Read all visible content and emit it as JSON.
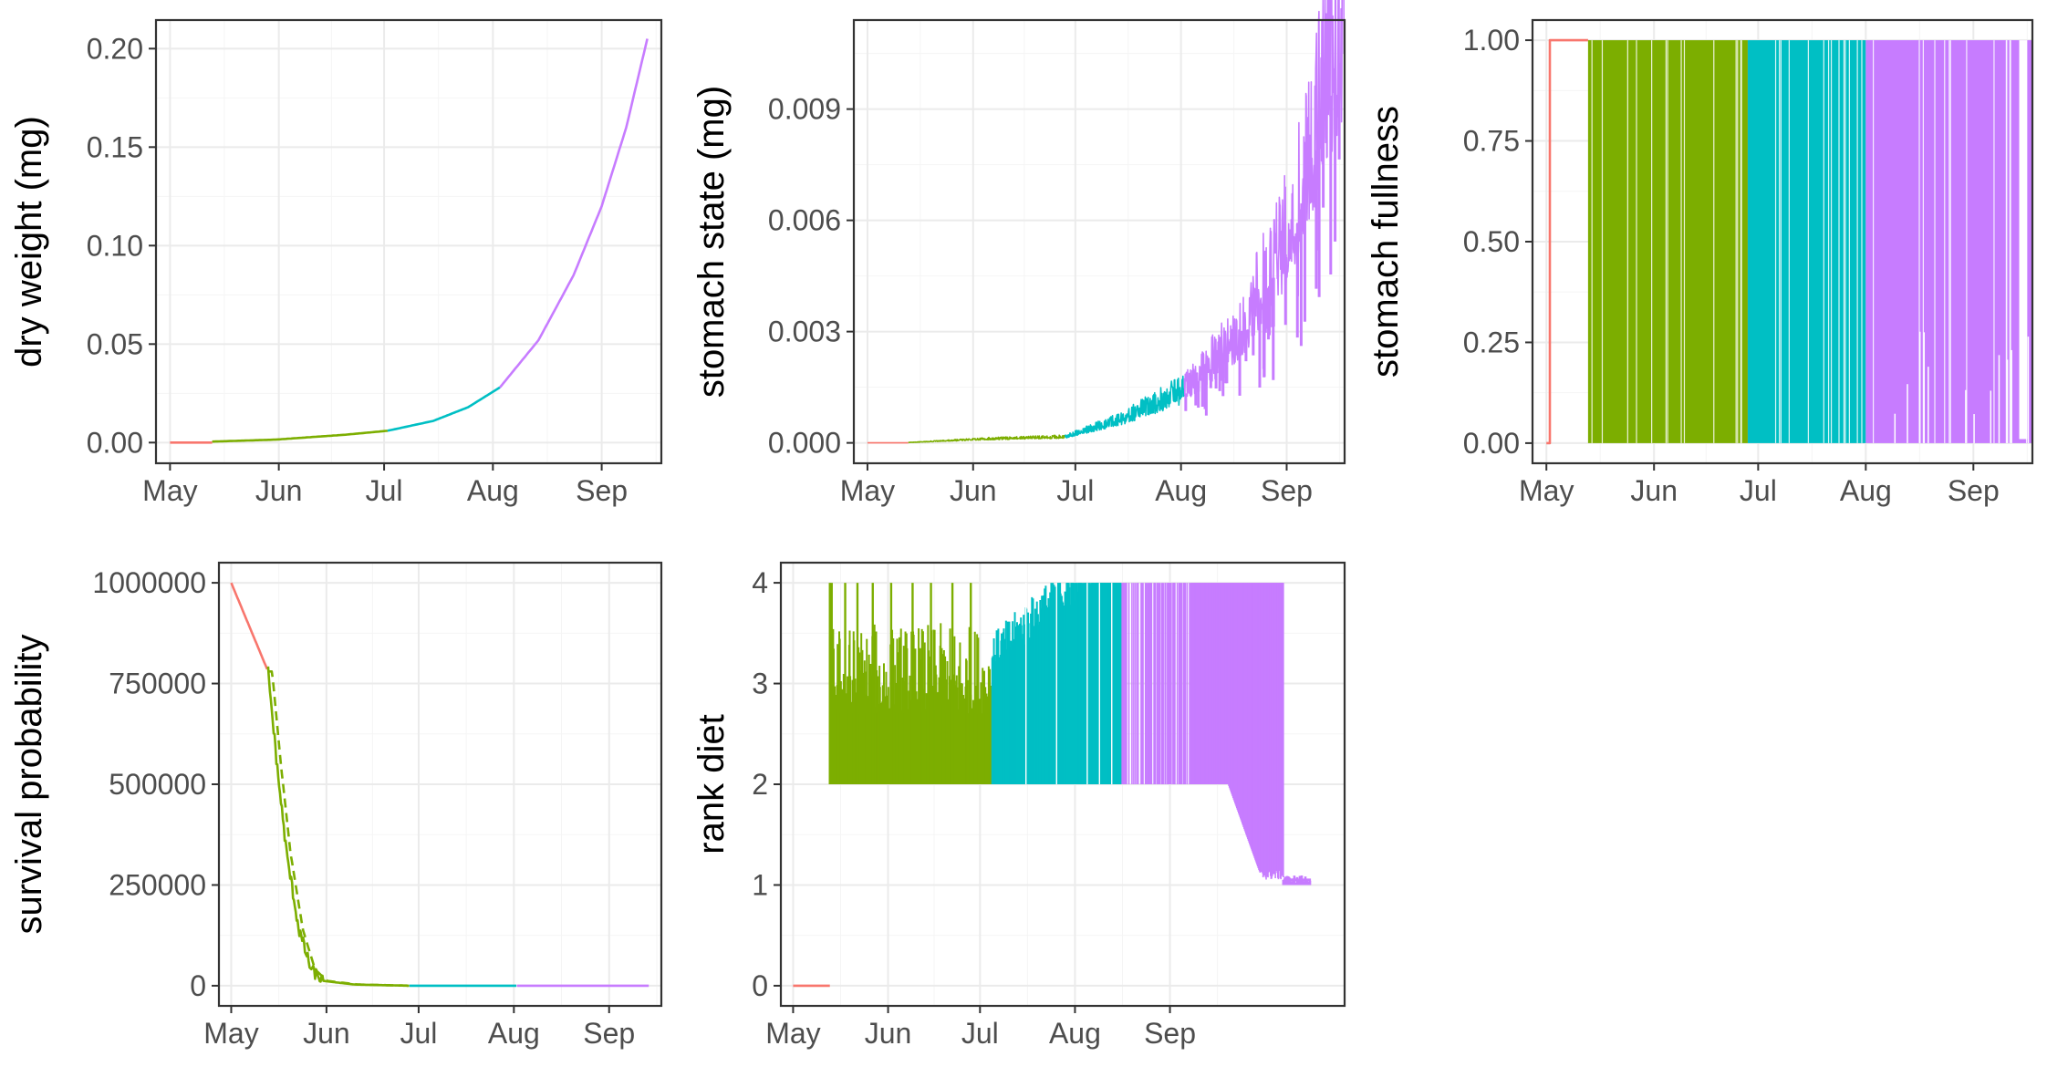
{
  "colors": {
    "phase1": "#F8766D",
    "phase2": "#7CAE00",
    "phase3": "#00BFC4",
    "phase4": "#C77CFF"
  },
  "x_tick_labels": [
    "May",
    "Jun",
    "Jul",
    "Aug",
    "Sep"
  ],
  "chart_data": [
    {
      "type": "line",
      "ylabel": "dry weight (mg)",
      "xlabel": "",
      "x_ticks": [
        "May",
        "Jun",
        "Jul",
        "Aug",
        "Sep"
      ],
      "y_ticks": [
        "0.00",
        "0.05",
        "0.10",
        "0.15",
        "0.20"
      ],
      "ylim": [
        -0.0105,
        0.2145
      ],
      "x_domain_days": [
        -4,
        140
      ],
      "series": [
        {
          "phase": "phase1",
          "x": [
            0,
            12
          ],
          "y": [
            0.0,
            0.0
          ]
        },
        {
          "phase": "phase2",
          "x": [
            12,
            30,
            50,
            62
          ],
          "y": [
            0.0005,
            0.0015,
            0.004,
            0.006
          ]
        },
        {
          "phase": "phase3",
          "x": [
            62,
            75,
            85,
            94
          ],
          "y": [
            0.006,
            0.011,
            0.018,
            0.028
          ]
        },
        {
          "phase": "phase4",
          "x": [
            94,
            105,
            115,
            123,
            130,
            136
          ],
          "y": [
            0.028,
            0.052,
            0.085,
            0.12,
            0.16,
            0.205
          ]
        }
      ]
    },
    {
      "type": "line",
      "ylabel": "stomach state (mg)",
      "xlabel": "",
      "x_ticks": [
        "May",
        "Jun",
        "Jul",
        "Aug",
        "Sep"
      ],
      "y_ticks": [
        "0.000",
        "0.003",
        "0.006",
        "0.009"
      ],
      "ylim": [
        -0.00055,
        0.0114
      ],
      "x_domain_days": [
        -4,
        140
      ],
      "series": [
        {
          "phase": "phase1",
          "x": [
            0,
            12
          ],
          "y": [
            0.0,
            0.0
          ]
        },
        {
          "phase": "phase2",
          "x": [
            12,
            35,
            58
          ],
          "y": [
            1e-05,
            0.0001,
            0.00015
          ]
        },
        {
          "phase": "phase3",
          "x": [
            58,
            75,
            93
          ],
          "y": [
            0.00015,
            0.0006,
            0.0013
          ]
        },
        {
          "phase": "phase4",
          "x": [
            93,
            110,
            125,
            140
          ],
          "y": [
            0.0013,
            0.0028,
            0.0055,
            0.0108
          ]
        }
      ]
    },
    {
      "type": "line",
      "ylabel": "stomach fullness",
      "xlabel": "",
      "x_ticks": [
        "May",
        "Jun",
        "Jul",
        "Aug",
        "Sep"
      ],
      "y_ticks": [
        "0.00",
        "0.25",
        "0.50",
        "0.75",
        "1.00"
      ],
      "ylim": [
        -0.05,
        1.05
      ],
      "x_domain_days": [
        -4,
        140
      ],
      "series": [
        {
          "phase": "phase1",
          "x": [
            0,
            1,
            1,
            12
          ],
          "y": [
            0.0,
            0.0,
            1.0,
            1.0
          ]
        },
        {
          "phase": "phase2",
          "x": [
            12,
            58
          ],
          "y": [
            0.0,
            1.0
          ]
        },
        {
          "phase": "phase3",
          "x": [
            58,
            92
          ],
          "y": [
            0.0,
            1.0
          ]
        },
        {
          "phase": "phase4",
          "x": [
            92,
            140
          ],
          "y": [
            0.0,
            1.0
          ]
        }
      ]
    },
    {
      "type": "line",
      "ylabel": "survival probability",
      "xlabel": "",
      "x_ticks": [
        "May",
        "Jun",
        "Jul",
        "Aug",
        "Sep"
      ],
      "y_ticks": [
        "0",
        "250000",
        "500000",
        "750000",
        "1000000"
      ],
      "ylim": [
        -50000,
        1050000
      ],
      "x_domain_days": [
        -4,
        140
      ],
      "series": [
        {
          "phase": "phase1",
          "x": [
            0,
            12
          ],
          "y": [
            1000000,
            780000
          ]
        },
        {
          "phase": "phase2",
          "x": [
            12,
            15,
            18,
            22,
            26,
            30,
            40,
            58
          ],
          "y": [
            780000,
            540000,
            330000,
            140000,
            40000,
            12000,
            3000,
            0
          ]
        },
        {
          "phase": "phase3",
          "x": [
            58,
            93
          ],
          "y": [
            0,
            0
          ]
        },
        {
          "phase": "phase4",
          "x": [
            93,
            136
          ],
          "y": [
            0,
            0
          ]
        }
      ]
    },
    {
      "type": "line",
      "ylabel": "rank diet",
      "xlabel": "",
      "x_ticks": [
        "May",
        "Jun",
        "Jul",
        "Aug",
        "Sep"
      ],
      "y_ticks": [
        "0",
        "1",
        "2",
        "3",
        "4"
      ],
      "ylim": [
        -0.2,
        4.2
      ],
      "x_domain_days": [
        -4,
        180
      ],
      "series": [
        {
          "phase": "phase1",
          "x": [
            0,
            12
          ],
          "y": [
            0,
            0
          ]
        },
        {
          "phase": "phase2",
          "x": [
            12,
            65
          ],
          "y": [
            2,
            4
          ]
        },
        {
          "phase": "phase3",
          "x": [
            65,
            107
          ],
          "y": [
            2,
            4
          ]
        },
        {
          "phase": "phase4",
          "x": [
            107,
            170
          ],
          "y": [
            1,
            4
          ]
        }
      ]
    }
  ]
}
